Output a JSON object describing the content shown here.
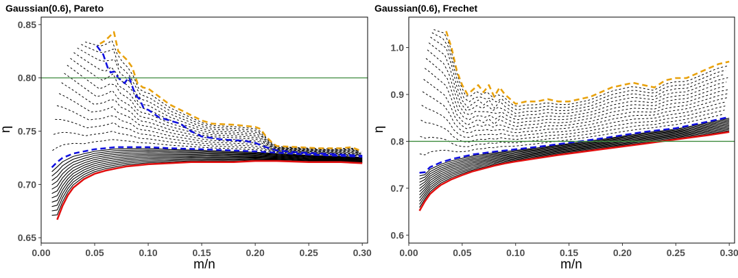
{
  "chart_data": [
    {
      "type": "line",
      "title": "Gaussian(0.6), Pareto",
      "xlabel": "m/n",
      "ylabel": "η",
      "xlim": [
        0.0,
        0.305
      ],
      "ylim": [
        0.645,
        0.857
      ],
      "xticks": [
        0.0,
        0.05,
        0.1,
        0.15,
        0.2,
        0.25,
        0.3
      ],
      "xtick_labels": [
        "0.00",
        "0.05",
        "0.10",
        "0.15",
        "0.20",
        "0.25",
        "0.30"
      ],
      "yticks": [
        0.65,
        0.7,
        0.75,
        0.8,
        0.85
      ],
      "ytick_labels": [
        "0.65",
        "0.70",
        "0.75",
        "0.80",
        "0.85"
      ],
      "grid": false,
      "legend": "none",
      "hline": {
        "y": 0.8,
        "color": "#3b8a3b"
      },
      "colors": {
        "upper": "#e8a10c",
        "threshold": "#1010e0",
        "lower": "#e01010",
        "solid": "#000000",
        "dashed": "#000000",
        "frame": "#000000"
      },
      "series": [
        {
          "style": "upper",
          "x": [
            0.055,
            0.06,
            0.065,
            0.068,
            0.072,
            0.075,
            0.08,
            0.085,
            0.09,
            0.095,
            0.1,
            0.12,
            0.14,
            0.15,
            0.16,
            0.18,
            0.2,
            0.205,
            0.21,
            0.215,
            0.22,
            0.24,
            0.26,
            0.28,
            0.29,
            0.3
          ],
          "y": [
            0.832,
            0.835,
            0.84,
            0.843,
            0.825,
            0.822,
            0.817,
            0.81,
            0.795,
            0.791,
            0.79,
            0.775,
            0.765,
            0.76,
            0.757,
            0.756,
            0.754,
            0.752,
            0.745,
            0.74,
            0.736,
            0.735,
            0.734,
            0.734,
            0.735,
            0.731
          ]
        },
        {
          "style": "threshold-upper",
          "x": [
            0.052,
            0.058,
            0.062,
            0.065,
            0.068,
            0.072,
            0.078,
            0.082,
            0.088,
            0.092,
            0.096,
            0.1,
            0.11,
            0.12,
            0.13,
            0.14,
            0.15,
            0.17,
            0.19,
            0.2,
            0.21,
            0.22,
            0.24,
            0.26,
            0.28,
            0.3
          ],
          "y": [
            0.83,
            0.822,
            0.81,
            0.805,
            0.806,
            0.8,
            0.795,
            0.801,
            0.784,
            0.78,
            0.771,
            0.77,
            0.763,
            0.76,
            0.757,
            0.75,
            0.745,
            0.742,
            0.741,
            0.739,
            0.735,
            0.732,
            0.73,
            0.729,
            0.728,
            0.727
          ]
        },
        {
          "style": "threshold-lower",
          "x": [
            0.01,
            0.015,
            0.02,
            0.025,
            0.03,
            0.04,
            0.05,
            0.06,
            0.07,
            0.08,
            0.1,
            0.12,
            0.15,
            0.2,
            0.25,
            0.3
          ],
          "y": [
            0.716,
            0.721,
            0.725,
            0.727,
            0.729,
            0.731,
            0.733,
            0.734,
            0.735,
            0.735,
            0.735,
            0.734,
            0.733,
            0.731,
            0.728,
            0.726
          ]
        },
        {
          "style": "lower",
          "x": [
            0.015,
            0.02,
            0.025,
            0.03,
            0.04,
            0.05,
            0.06,
            0.07,
            0.08,
            0.09,
            0.1,
            0.12,
            0.14,
            0.16,
            0.18,
            0.2,
            0.22,
            0.25,
            0.28,
            0.3
          ],
          "y": [
            0.667,
            0.68,
            0.69,
            0.697,
            0.705,
            0.71,
            0.713,
            0.715,
            0.717,
            0.718,
            0.719,
            0.72,
            0.721,
            0.721,
            0.721,
            0.722,
            0.722,
            0.721,
            0.721,
            0.72
          ]
        }
      ]
    },
    {
      "type": "line",
      "title": "Gaussian(0.6), Frechet",
      "xlabel": "m/n",
      "ylabel": "η",
      "xlim": [
        0.0,
        0.305
      ],
      "ylim": [
        0.583,
        1.065
      ],
      "xticks": [
        0.0,
        0.05,
        0.1,
        0.15,
        0.2,
        0.25,
        0.3
      ],
      "xtick_labels": [
        "0.00",
        "0.05",
        "0.10",
        "0.15",
        "0.20",
        "0.25",
        "0.30"
      ],
      "yticks": [
        0.6,
        0.7,
        0.8,
        0.9,
        1.0
      ],
      "ytick_labels": [
        "0.6",
        "0.7",
        "0.8",
        "0.9",
        "1.0"
      ],
      "grid": false,
      "legend": "none",
      "hline": {
        "y": 0.8,
        "color": "#3b8a3b"
      },
      "colors": {
        "upper": "#e8a10c",
        "threshold": "#1010e0",
        "lower": "#e01010",
        "solid": "#000000",
        "dashed": "#000000",
        "frame": "#000000"
      },
      "series": [
        {
          "style": "upper",
          "x": [
            0.035,
            0.04,
            0.045,
            0.05,
            0.055,
            0.06,
            0.065,
            0.07,
            0.075,
            0.08,
            0.085,
            0.09,
            0.095,
            0.1,
            0.11,
            0.12,
            0.13,
            0.14,
            0.15,
            0.16,
            0.17,
            0.18,
            0.19,
            0.2,
            0.21,
            0.22,
            0.23,
            0.24,
            0.25,
            0.26,
            0.27,
            0.28,
            0.29,
            0.3
          ],
          "y": [
            1.035,
            1.0,
            0.95,
            0.92,
            0.9,
            0.91,
            0.92,
            0.905,
            0.92,
            0.895,
            0.915,
            0.9,
            0.89,
            0.88,
            0.885,
            0.885,
            0.89,
            0.885,
            0.885,
            0.89,
            0.895,
            0.905,
            0.915,
            0.92,
            0.925,
            0.92,
            0.915,
            0.93,
            0.935,
            0.935,
            0.945,
            0.955,
            0.965,
            0.97
          ]
        },
        {
          "style": "threshold",
          "x": [
            0.01,
            0.015,
            0.02,
            0.03,
            0.04,
            0.05,
            0.06,
            0.08,
            0.1,
            0.12,
            0.15,
            0.18,
            0.2,
            0.22,
            0.25,
            0.28,
            0.3
          ],
          "y": [
            0.733,
            0.734,
            0.745,
            0.755,
            0.762,
            0.767,
            0.772,
            0.778,
            0.783,
            0.788,
            0.797,
            0.806,
            0.813,
            0.82,
            0.828,
            0.842,
            0.852
          ]
        },
        {
          "style": "lower",
          "x": [
            0.01,
            0.015,
            0.02,
            0.025,
            0.03,
            0.04,
            0.05,
            0.06,
            0.07,
            0.08,
            0.09,
            0.1,
            0.12,
            0.14,
            0.16,
            0.18,
            0.2,
            0.22,
            0.24,
            0.26,
            0.28,
            0.3
          ],
          "y": [
            0.652,
            0.672,
            0.688,
            0.698,
            0.707,
            0.719,
            0.728,
            0.736,
            0.742,
            0.748,
            0.753,
            0.757,
            0.764,
            0.771,
            0.777,
            0.783,
            0.789,
            0.795,
            0.801,
            0.807,
            0.813,
            0.82
          ]
        }
      ]
    }
  ]
}
